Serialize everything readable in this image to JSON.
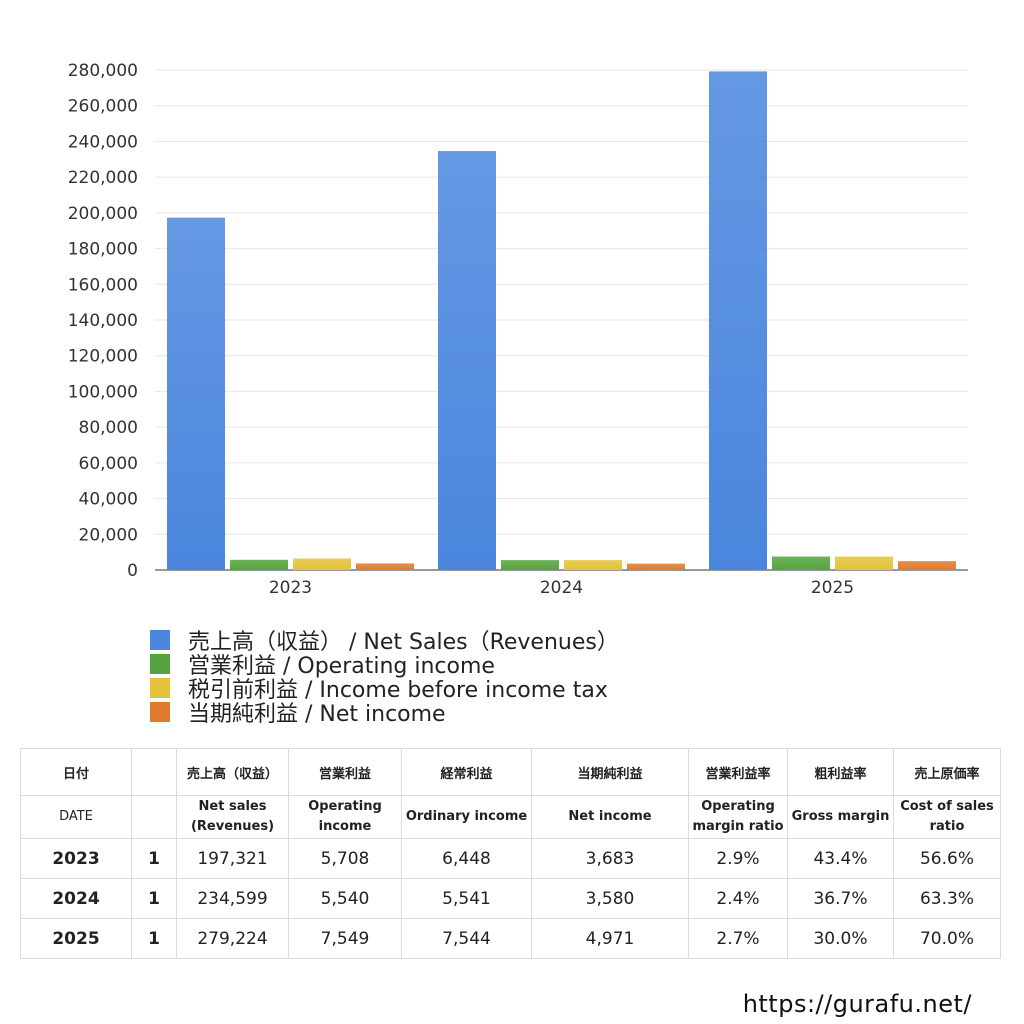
{
  "chart_data": {
    "type": "bar",
    "categories": [
      "2023",
      "2024",
      "2025"
    ],
    "series": [
      {
        "name": "売上高（収益） / Net Sales（Revenues）",
        "values": [
          197321,
          234599,
          279224
        ],
        "color": "#4a86de"
      },
      {
        "name": "営業利益 / Operating income",
        "values": [
          5708,
          5540,
          7549
        ],
        "color": "#55a43f"
      },
      {
        "name": "税引前利益 / Income before income tax",
        "values": [
          6448,
          5541,
          7544
        ],
        "color": "#e3c33a"
      },
      {
        "name": "当期純利益 / Net income",
        "values": [
          3683,
          3580,
          4971
        ],
        "color": "#e07b2e"
      }
    ],
    "ylim": [
      0,
      280000
    ],
    "ytick_step": 20000,
    "grid": true,
    "legend_position": "bottom-left"
  },
  "table": {
    "headers_ja": [
      "日付",
      "",
      "売上高（収益）",
      "営業利益",
      "経常利益",
      "当期純利益",
      "営業利益率",
      "粗利益率",
      "売上原価率"
    ],
    "headers_en": [
      "DATE",
      "",
      "Net sales\n(Revenues)",
      "Operating\nincome",
      "Ordinary income",
      "Net income",
      "Operating\nmargin ratio",
      "Gross margin",
      "Cost of sales\nratio"
    ],
    "rows": [
      [
        "2023",
        "1",
        "197,321",
        "5,708",
        "6,448",
        "3,683",
        "2.9%",
        "43.4%",
        "56.6%"
      ],
      [
        "2024",
        "1",
        "234,599",
        "5,540",
        "5,541",
        "3,580",
        "2.4%",
        "36.7%",
        "63.3%"
      ],
      [
        "2025",
        "1",
        "279,224",
        "7,549",
        "7,544",
        "4,971",
        "2.7%",
        "30.0%",
        "70.0%"
      ]
    ]
  },
  "footer": {
    "url": "https://gurafu.net/"
  }
}
